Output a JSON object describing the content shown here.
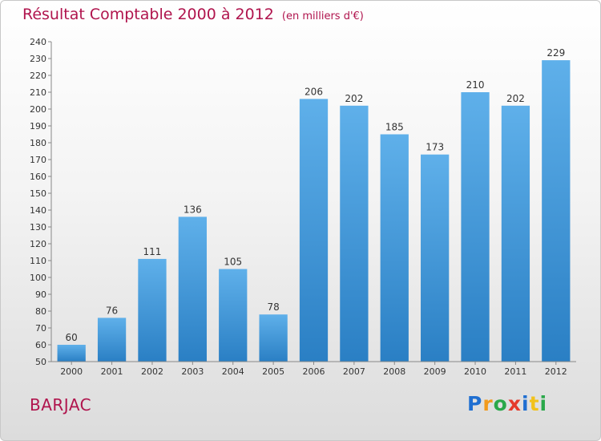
{
  "chart_data": {
    "type": "bar",
    "title": "Résultat Comptable 2000 à 2012",
    "unit_note": "(en milliers d'€)",
    "categories": [
      "2000",
      "2001",
      "2002",
      "2003",
      "2004",
      "2005",
      "2006",
      "2007",
      "2008",
      "2009",
      "2010",
      "2011",
      "2012"
    ],
    "values": [
      60,
      76,
      111,
      136,
      105,
      78,
      206,
      202,
      185,
      173,
      210,
      202,
      229
    ],
    "ylim": [
      50,
      240
    ],
    "ystep": 10,
    "grid": false,
    "bar_color": "#3a8fd4"
  },
  "place_name": "BARJAC",
  "brand": {
    "name": "Proxiti",
    "letters": [
      {
        "ch": "P",
        "color": "#1f6fd1"
      },
      {
        "ch": "r",
        "color": "#f29a1c"
      },
      {
        "ch": "o",
        "color": "#2aa84a"
      },
      {
        "ch": "x",
        "color": "#e53a2b"
      },
      {
        "ch": "i",
        "color": "#1f6fd1"
      },
      {
        "ch": "t",
        "color": "#f2c21c"
      },
      {
        "ch": "i",
        "color": "#2aa84a"
      }
    ]
  }
}
